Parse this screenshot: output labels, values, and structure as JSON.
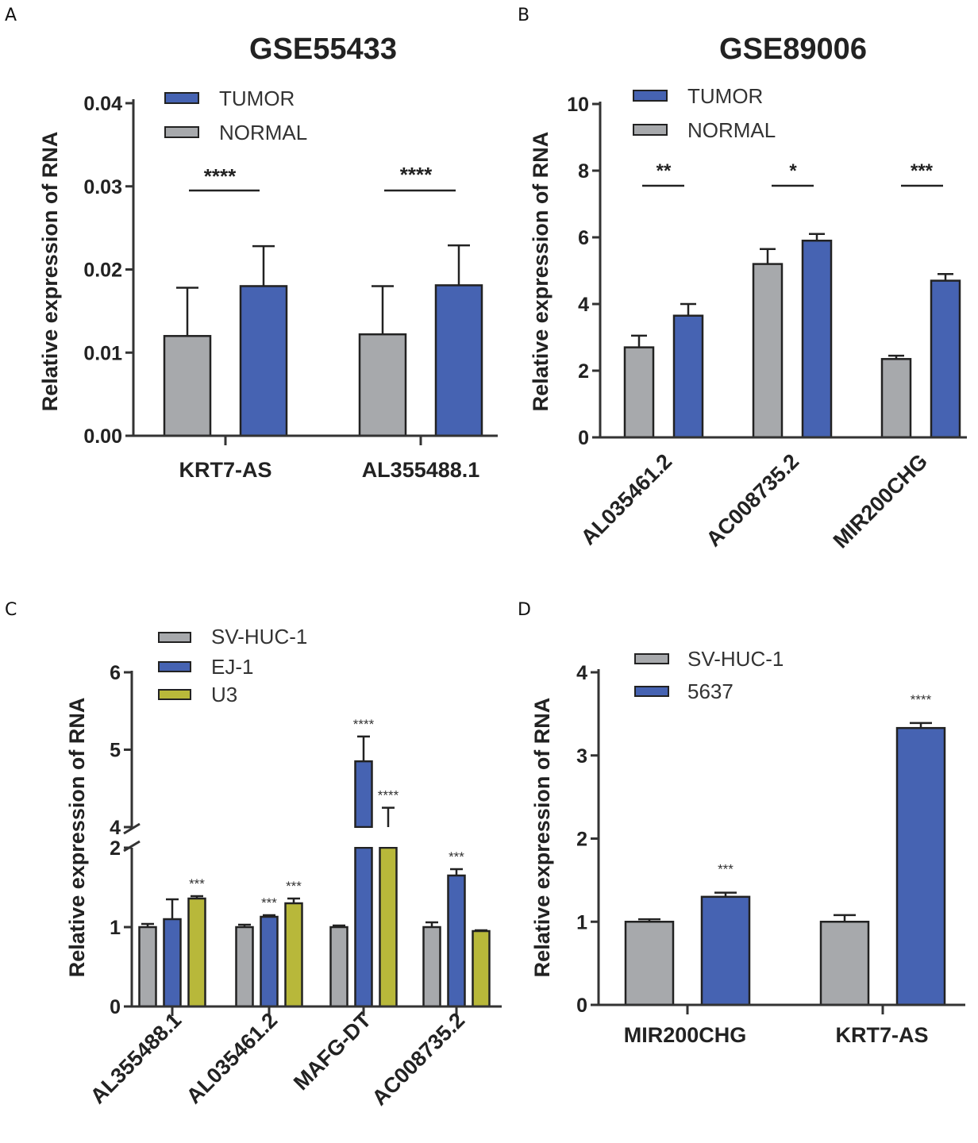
{
  "colors": {
    "tumor": "#4663b2",
    "normal": "#a7a9ac",
    "u3": "#b8b83a",
    "axis": "#333333"
  },
  "chart_data": [
    {
      "panel": "A",
      "type": "bar",
      "title": "GSE55433",
      "ylabel": "Relative expression of RNA",
      "xlabel": "",
      "ylim": [
        0,
        0.04
      ],
      "yticks": [
        "0.00",
        "0.01",
        "0.02",
        "0.03",
        "0.04"
      ],
      "ytick_values": [
        0,
        0.01,
        0.02,
        0.03,
        0.04
      ],
      "categories": [
        "KRT7-AS",
        "AL355488.1"
      ],
      "series": [
        {
          "name": "NORMAL",
          "color": "normal",
          "values": [
            0.012,
            0.0122
          ],
          "errors": [
            0.0058,
            0.0058
          ]
        },
        {
          "name": "TUMOR",
          "color": "tumor",
          "values": [
            0.018,
            0.0181
          ],
          "errors": [
            0.0048,
            0.0048
          ]
        }
      ],
      "legend": [
        {
          "name": "TUMOR",
          "color": "tumor"
        },
        {
          "name": "NORMAL",
          "color": "normal"
        }
      ],
      "significance": [
        "****",
        "****"
      ]
    },
    {
      "panel": "B",
      "type": "bar",
      "title": "GSE89006",
      "ylabel": "Relative expression of RNA",
      "xlabel": "",
      "ylim": [
        0,
        10
      ],
      "yticks": [
        "0",
        "2",
        "4",
        "6",
        "8",
        "10"
      ],
      "ytick_values": [
        0,
        2,
        4,
        6,
        8,
        10
      ],
      "categories": [
        "AL035461.2",
        "AC008735.2",
        "MIR200CHG"
      ],
      "series": [
        {
          "name": "NORMAL",
          "color": "normal",
          "values": [
            2.7,
            5.2,
            2.35
          ],
          "errors": [
            0.35,
            0.45,
            0.1
          ]
        },
        {
          "name": "TUMOR",
          "color": "tumor",
          "values": [
            3.65,
            5.9,
            4.7
          ],
          "errors": [
            0.35,
            0.2,
            0.2
          ]
        }
      ],
      "legend": [
        {
          "name": "TUMOR",
          "color": "tumor"
        },
        {
          "name": "NORMAL",
          "color": "normal"
        }
      ],
      "significance": [
        "**",
        "*",
        "***"
      ]
    },
    {
      "panel": "C",
      "type": "bar",
      "title": "",
      "ylabel": "Relative expression of RNA",
      "xlabel": "",
      "ylim": [
        0,
        6
      ],
      "axis_break": [
        2,
        4
      ],
      "yticks": [
        "0",
        "1",
        "2",
        "4",
        "5",
        "6"
      ],
      "ytick_values": [
        0,
        1,
        2,
        4,
        5,
        6
      ],
      "categories": [
        "AL355488.1",
        "AL035461.2",
        "MAFG-DT",
        "AC008735.2"
      ],
      "series": [
        {
          "name": "SV-HUC-1",
          "color": "normal",
          "values": [
            1.0,
            1.0,
            1.0,
            1.0
          ],
          "errors": [
            0.04,
            0.03,
            0.02,
            0.06
          ],
          "sig": [
            "",
            "",
            "",
            ""
          ]
        },
        {
          "name": "EJ-1",
          "color": "tumor",
          "values": [
            1.1,
            1.13,
            4.85,
            1.65
          ],
          "errors": [
            0.25,
            0.02,
            0.32,
            0.08
          ],
          "sig": [
            "",
            "***",
            "****",
            "***"
          ]
        },
        {
          "name": "U3",
          "color": "u3",
          "values": [
            1.36,
            1.3,
            4.0,
            0.95
          ],
          "errors": [
            0.03,
            0.06,
            0.25,
            0.01
          ],
          "sig": [
            "***",
            "***",
            "****",
            ""
          ]
        }
      ],
      "legend": [
        {
          "name": "SV-HUC-1",
          "color": "normal"
        },
        {
          "name": "EJ-1",
          "color": "tumor"
        },
        {
          "name": "U3",
          "color": "u3"
        }
      ]
    },
    {
      "panel": "D",
      "type": "bar",
      "title": "",
      "ylabel": "Relative expression of RNA",
      "xlabel": "",
      "ylim": [
        0,
        4
      ],
      "yticks": [
        "0",
        "1",
        "2",
        "3",
        "4"
      ],
      "ytick_values": [
        0,
        1,
        2,
        3,
        4
      ],
      "categories": [
        "MIR200CHG",
        "KRT7-AS"
      ],
      "series": [
        {
          "name": "SV-HUC-1",
          "color": "normal",
          "values": [
            1.0,
            1.0
          ],
          "errors": [
            0.03,
            0.08
          ],
          "sig": [
            "",
            ""
          ]
        },
        {
          "name": "5637",
          "color": "tumor",
          "values": [
            1.3,
            3.33
          ],
          "errors": [
            0.05,
            0.06
          ],
          "sig": [
            "***",
            "****"
          ]
        }
      ],
      "legend": [
        {
          "name": "SV-HUC-1",
          "color": "normal"
        },
        {
          "name": "5637",
          "color": "tumor"
        }
      ]
    }
  ],
  "panel_labels": [
    "A",
    "B",
    "C",
    "D"
  ]
}
